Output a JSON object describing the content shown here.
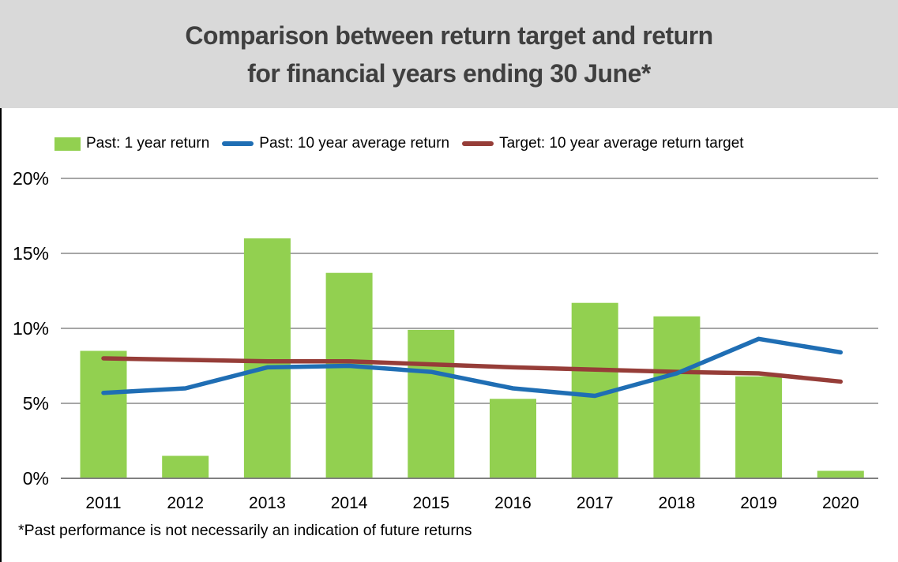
{
  "title": {
    "line1": "Comparison between return target and return",
    "line2": "for financial years ending 30 June*"
  },
  "footnote": "*Past performance is not necessarily an indication of future returns",
  "colors": {
    "title_band_bg": "#d9d9d9",
    "title_text": "#3f3f3f",
    "bar_green": "#92d050",
    "line_blue": "#1f6eb4",
    "line_red": "#963d38",
    "gridline": "#a6a6a6",
    "axis_line": "#808080",
    "text": "#000000"
  },
  "chart_data": {
    "type": "bar",
    "subtype": "bar-with-lines",
    "title": "Comparison between return target and return for financial years ending 30 June*",
    "xlabel": "",
    "ylabel": "",
    "categories": [
      "2011",
      "2012",
      "2013",
      "2014",
      "2015",
      "2016",
      "2017",
      "2018",
      "2019",
      "2020"
    ],
    "series": [
      {
        "name": "Past: 1 year return",
        "type": "bar",
        "color": "#92d050",
        "values": [
          8.5,
          1.5,
          16.0,
          13.7,
          9.9,
          5.3,
          11.7,
          10.8,
          6.8,
          0.5
        ]
      },
      {
        "name": "Past: 10 year average return",
        "type": "line",
        "color": "#1f6eb4",
        "values": [
          5.7,
          6.0,
          7.4,
          7.5,
          7.1,
          6.0,
          5.5,
          7.0,
          9.3,
          8.4
        ]
      },
      {
        "name": "Target: 10 year average return target",
        "type": "line",
        "color": "#963d38",
        "values": [
          8.0,
          7.9,
          7.8,
          7.8,
          7.6,
          7.4,
          7.25,
          7.1,
          7.0,
          6.45
        ]
      }
    ],
    "ylim": [
      0,
      20
    ],
    "ytick_step": 5,
    "yticks": [
      "0%",
      "5%",
      "10%",
      "15%",
      "20%"
    ],
    "grid": true,
    "legend_position": "top"
  }
}
